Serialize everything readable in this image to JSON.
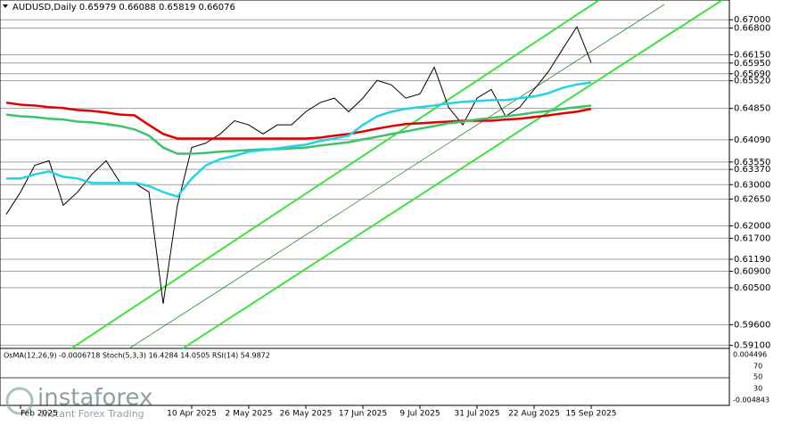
{
  "chart_data": {
    "type": "line",
    "title": "AUDUSD,Daily  0.65979 0.66088 0.65819 0.66076",
    "categories": [
      null,
      "Feb 2025",
      null,
      null,
      null,
      null,
      null,
      null,
      null,
      null,
      null,
      null,
      null,
      "10 Apr 2025",
      null,
      null,
      null,
      "2 May 2025",
      null,
      null,
      null,
      "26 May 2025",
      null,
      null,
      null,
      "17 Jun 2025",
      null,
      null,
      null,
      "9 Jul 2025",
      null,
      null,
      null,
      "31 Jul 2025",
      null,
      null,
      null,
      "22 Aug 2025",
      null,
      null,
      null,
      "15 Sep 2025"
    ],
    "series": [
      {
        "color": "#000000",
        "values": [
          0.6228,
          0.6282,
          0.6347,
          0.6358,
          0.625,
          0.6282,
          0.6325,
          0.6358,
          0.6304,
          0.6304,
          0.6282,
          0.6011,
          0.625,
          0.639,
          0.6401,
          0.6423,
          0.6455,
          0.6445,
          0.6423,
          0.6445,
          0.6445,
          0.6477,
          0.6499,
          0.651,
          0.6477,
          0.651,
          0.6553,
          0.6542,
          0.651,
          0.652,
          0.6585,
          0.6488,
          0.6445,
          0.651,
          0.6531,
          0.6466,
          0.6488,
          0.6531,
          0.6574,
          0.6629,
          0.6683,
          0.6596
        ]
      },
      {
        "color": "#e00000",
        "values": [
          0.6499,
          0.6494,
          0.6492,
          0.6488,
          0.6486,
          0.6481,
          0.6479,
          0.6475,
          0.647,
          0.6468,
          0.6445,
          0.6423,
          0.6412,
          0.6412,
          0.6412,
          0.6412,
          0.6412,
          0.6412,
          0.6412,
          0.6412,
          0.6412,
          0.6412,
          0.6414,
          0.6419,
          0.6423,
          0.6429,
          0.6436,
          0.6442,
          0.6447,
          0.6449,
          0.6451,
          0.6453,
          0.6455,
          0.6455,
          0.6455,
          0.6458,
          0.646,
          0.6464,
          0.6468,
          0.6473,
          0.6477,
          0.6484
        ]
      },
      {
        "color": "#3cc36a",
        "values": [
          0.647,
          0.6466,
          0.6464,
          0.646,
          0.6458,
          0.6453,
          0.6451,
          0.6447,
          0.6442,
          0.6434,
          0.6419,
          0.639,
          0.6375,
          0.6375,
          0.6377,
          0.638,
          0.6382,
          0.6384,
          0.6386,
          0.6386,
          0.6388,
          0.639,
          0.6395,
          0.6399,
          0.6403,
          0.641,
          0.6416,
          0.6423,
          0.6429,
          0.6436,
          0.6442,
          0.6449,
          0.6453,
          0.6458,
          0.6462,
          0.6466,
          0.647,
          0.6475,
          0.6479,
          0.6484,
          0.6488,
          0.6492
        ]
      },
      {
        "color": "#22d3e6",
        "values": [
          0.6315,
          0.6315,
          0.6325,
          0.6332,
          0.6319,
          0.6315,
          0.6304,
          0.6304,
          0.6304,
          0.6304,
          0.6297,
          0.6282,
          0.6271,
          0.6315,
          0.6347,
          0.6362,
          0.637,
          0.638,
          0.6384,
          0.6388,
          0.6393,
          0.6397,
          0.6406,
          0.6412,
          0.6419,
          0.6445,
          0.6466,
          0.6477,
          0.6484,
          0.6488,
          0.6492,
          0.6497,
          0.6501,
          0.6503,
          0.6505,
          0.6505,
          0.651,
          0.6514,
          0.6522,
          0.6535,
          0.6543,
          0.6548
        ]
      }
    ],
    "ylim": [
      0.5905,
      0.6748
    ],
    "yticks": [
      {
        "value": 0.67,
        "label": "0.67000"
      },
      {
        "value": 0.668,
        "label": "0.66800"
      },
      {
        "value": 0.6615,
        "label": "0.66150"
      },
      {
        "value": 0.6595,
        "label": "0.65950"
      },
      {
        "value": 0.6569,
        "label": "0.65690"
      },
      {
        "value": 0.6552,
        "label": "0.65520"
      },
      {
        "value": 0.6485,
        "label": "0.64850"
      },
      {
        "value": 0.6409,
        "label": "0.64090"
      },
      {
        "value": 0.6355,
        "label": "0.63550"
      },
      {
        "value": 0.6337,
        "label": "0.63370"
      },
      {
        "value": 0.63,
        "label": "0.63000"
      },
      {
        "value": 0.6265,
        "label": "0.62650"
      },
      {
        "value": 0.62,
        "label": "0.62000"
      },
      {
        "value": 0.617,
        "label": "0.61700"
      },
      {
        "value": 0.6119,
        "label": "0.61190"
      },
      {
        "value": 0.609,
        "label": "0.60900"
      },
      {
        "value": 0.605,
        "label": "0.60500"
      },
      {
        "value": 0.596,
        "label": "0.59600"
      },
      {
        "value": 0.591,
        "label": "0.59100"
      }
    ]
  },
  "indicator": {
    "text": "OsMA(12,26,9) -0.0006718  Stoch(5,3,3) 16.4284 14.0505  RSI(14) 54.9872",
    "scale": [
      "0.004496",
      "70",
      "50",
      "30",
      "-0.004843"
    ]
  },
  "watermark": {
    "brand": "instaforex",
    "tagline": "Instant Forex Trading"
  }
}
